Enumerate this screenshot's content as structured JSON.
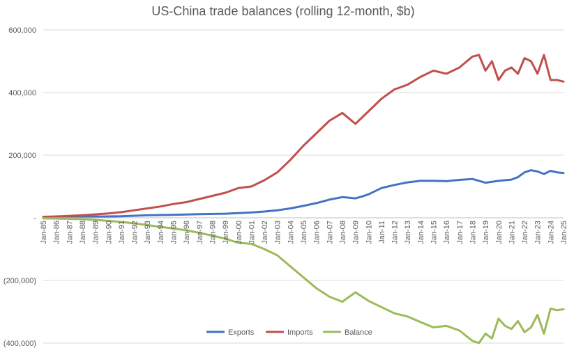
{
  "chart_data": {
    "type": "line",
    "title": "US-China trade balances (rolling 12-month, $b)",
    "xlabel": "",
    "ylabel": "",
    "ylim": [
      -400000,
      600000
    ],
    "yticks": [
      {
        "value": 600000,
        "label": "600,000"
      },
      {
        "value": 400000,
        "label": "400,000"
      },
      {
        "value": 200000,
        "label": "200,000"
      },
      {
        "value": 0,
        "label": "-"
      },
      {
        "value": -200000,
        "label": "(200,000)"
      },
      {
        "value": -400000,
        "label": "(400,000)"
      }
    ],
    "x_tick_labels": [
      "Jan-85",
      "Jan-86",
      "Jan-87",
      "Jan-88",
      "Jan-89",
      "Jan-90",
      "Jan-91",
      "Jan-92",
      "Jan-93",
      "Jan-94",
      "Jan-95",
      "Jan-96",
      "Jan-97",
      "Jan-98",
      "Jan-99",
      "Jan-00",
      "Jan-01",
      "Jan-02",
      "Jan-03",
      "Jan-04",
      "Jan-05",
      "Jan-06",
      "Jan-07",
      "Jan-08",
      "Jan-09",
      "Jan-10",
      "Jan-11",
      "Jan-12",
      "Jan-13",
      "Jan-14",
      "Jan-15",
      "Jan-16",
      "Jan-17",
      "Jan-18",
      "Jan-19",
      "Jan-20",
      "Jan-21",
      "Jan-22",
      "Jan-23",
      "Jan-24",
      "Jan-25"
    ],
    "grid": true,
    "legend_position": "bottom",
    "series": [
      {
        "name": "Exports",
        "color": "#4472C4",
        "points": [
          [
            1985.0,
            1000
          ],
          [
            1987.0,
            2500
          ],
          [
            1989.0,
            4000
          ],
          [
            1991.0,
            5000
          ],
          [
            1993.0,
            8000
          ],
          [
            1995.0,
            9500
          ],
          [
            1997.0,
            11500
          ],
          [
            1999.0,
            13000
          ],
          [
            2001.0,
            17000
          ],
          [
            2002.0,
            20000
          ],
          [
            2003.0,
            24000
          ],
          [
            2004.0,
            30000
          ],
          [
            2005.0,
            38000
          ],
          [
            2006.0,
            47000
          ],
          [
            2007.0,
            58000
          ],
          [
            2008.0,
            66000
          ],
          [
            2009.0,
            62000
          ],
          [
            2009.5,
            68000
          ],
          [
            2010.0,
            75000
          ],
          [
            2011.0,
            95000
          ],
          [
            2012.0,
            105000
          ],
          [
            2013.0,
            113000
          ],
          [
            2014.0,
            118000
          ],
          [
            2015.0,
            118000
          ],
          [
            2016.0,
            117000
          ],
          [
            2017.0,
            121000
          ],
          [
            2018.0,
            124000
          ],
          [
            2019.0,
            112000
          ],
          [
            2020.0,
            118000
          ],
          [
            2021.0,
            122000
          ],
          [
            2021.5,
            130000
          ],
          [
            2022.0,
            145000
          ],
          [
            2022.5,
            152000
          ],
          [
            2023.0,
            148000
          ],
          [
            2023.5,
            140000
          ],
          [
            2024.0,
            150000
          ],
          [
            2024.5,
            145000
          ],
          [
            2025.0,
            143000
          ]
        ]
      },
      {
        "name": "Imports",
        "color": "#C0504D",
        "points": [
          [
            1985.0,
            3000
          ],
          [
            1986.0,
            4500
          ],
          [
            1987.0,
            6000
          ],
          [
            1988.0,
            8000
          ],
          [
            1989.0,
            11000
          ],
          [
            1990.0,
            14000
          ],
          [
            1991.0,
            18000
          ],
          [
            1992.0,
            24000
          ],
          [
            1993.0,
            30000
          ],
          [
            1994.0,
            36000
          ],
          [
            1995.0,
            44000
          ],
          [
            1996.0,
            50000
          ],
          [
            1997.0,
            60000
          ],
          [
            1998.0,
            70000
          ],
          [
            1999.0,
            80000
          ],
          [
            2000.0,
            95000
          ],
          [
            2001.0,
            100000
          ],
          [
            2002.0,
            120000
          ],
          [
            2003.0,
            145000
          ],
          [
            2004.0,
            185000
          ],
          [
            2005.0,
            230000
          ],
          [
            2006.0,
            270000
          ],
          [
            2007.0,
            310000
          ],
          [
            2008.0,
            335000
          ],
          [
            2009.0,
            300000
          ],
          [
            2010.0,
            340000
          ],
          [
            2011.0,
            380000
          ],
          [
            2012.0,
            410000
          ],
          [
            2013.0,
            425000
          ],
          [
            2014.0,
            450000
          ],
          [
            2015.0,
            470000
          ],
          [
            2016.0,
            460000
          ],
          [
            2017.0,
            480000
          ],
          [
            2018.0,
            515000
          ],
          [
            2018.5,
            520000
          ],
          [
            2019.0,
            470000
          ],
          [
            2019.5,
            500000
          ],
          [
            2020.0,
            440000
          ],
          [
            2020.5,
            470000
          ],
          [
            2021.0,
            480000
          ],
          [
            2021.5,
            460000
          ],
          [
            2022.0,
            510000
          ],
          [
            2022.5,
            500000
          ],
          [
            2023.0,
            460000
          ],
          [
            2023.5,
            520000
          ],
          [
            2024.0,
            440000
          ],
          [
            2024.5,
            440000
          ],
          [
            2025.0,
            435000
          ]
        ]
      },
      {
        "name": "Balance",
        "color": "#9BBB59",
        "points": [
          [
            1985.0,
            -2000
          ],
          [
            1986.0,
            -2500
          ],
          [
            1987.0,
            -3500
          ],
          [
            1988.0,
            -4500
          ],
          [
            1989.0,
            -6500
          ],
          [
            1990.0,
            -10000
          ],
          [
            1991.0,
            -13000
          ],
          [
            1992.0,
            -18000
          ],
          [
            1993.0,
            -23000
          ],
          [
            1994.0,
            -29000
          ],
          [
            1995.0,
            -34000
          ],
          [
            1996.0,
            -40000
          ],
          [
            1997.0,
            -48000
          ],
          [
            1998.0,
            -57000
          ],
          [
            1999.0,
            -67000
          ],
          [
            2000.0,
            -80000
          ],
          [
            2001.0,
            -83000
          ],
          [
            2002.0,
            -100000
          ],
          [
            2003.0,
            -120000
          ],
          [
            2004.0,
            -155000
          ],
          [
            2005.0,
            -190000
          ],
          [
            2006.0,
            -225000
          ],
          [
            2007.0,
            -252000
          ],
          [
            2008.0,
            -268000
          ],
          [
            2009.0,
            -238000
          ],
          [
            2010.0,
            -265000
          ],
          [
            2011.0,
            -285000
          ],
          [
            2012.0,
            -305000
          ],
          [
            2013.0,
            -315000
          ],
          [
            2014.0,
            -333000
          ],
          [
            2015.0,
            -350000
          ],
          [
            2016.0,
            -345000
          ],
          [
            2017.0,
            -360000
          ],
          [
            2018.0,
            -393000
          ],
          [
            2018.5,
            -400000
          ],
          [
            2019.0,
            -370000
          ],
          [
            2019.5,
            -385000
          ],
          [
            2020.0,
            -322000
          ],
          [
            2020.5,
            -345000
          ],
          [
            2021.0,
            -355000
          ],
          [
            2021.5,
            -330000
          ],
          [
            2022.0,
            -365000
          ],
          [
            2022.5,
            -350000
          ],
          [
            2023.0,
            -310000
          ],
          [
            2023.5,
            -370000
          ],
          [
            2024.0,
            -290000
          ],
          [
            2024.5,
            -295000
          ],
          [
            2025.0,
            -292000
          ]
        ]
      }
    ]
  }
}
